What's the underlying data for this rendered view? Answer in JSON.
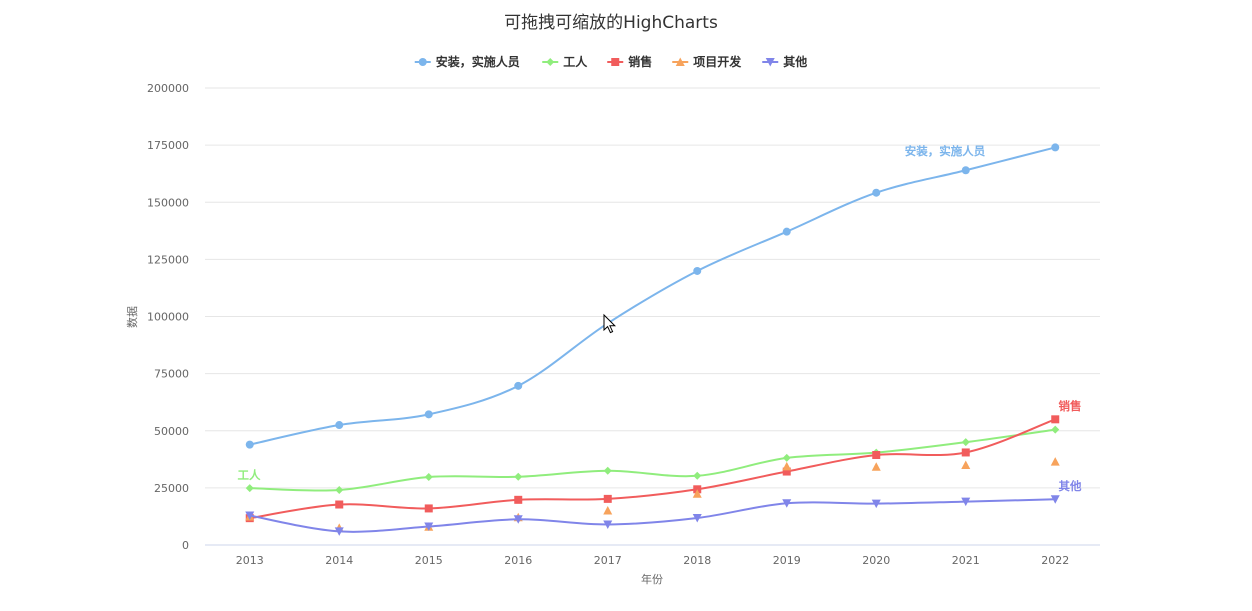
{
  "chart_data": {
    "type": "line",
    "title": "可拖拽可缩放的HighCharts",
    "xlabel": "年份",
    "ylabel": "数据",
    "categories": [
      "2013",
      "2014",
      "2015",
      "2016",
      "2017",
      "2018",
      "2019",
      "2020",
      "2021",
      "2022"
    ],
    "ylim": [
      0,
      200000
    ],
    "yticks": [
      0,
      25000,
      50000,
      75000,
      100000,
      125000,
      150000,
      175000,
      200000
    ],
    "grid": true,
    "legend_position": "top-center",
    "series": [
      {
        "name": "安装，实施人员",
        "color": "#7cb5ec",
        "marker": "circle",
        "values": [
          43934,
          52503,
          57177,
          69658,
          97031,
          119931,
          137133,
          154175,
          164000,
          174000
        ],
        "end_label": "安装，实施人员"
      },
      {
        "name": "工人",
        "color": "#90ed7d",
        "marker": "diamond",
        "values": [
          24916,
          24064,
          29742,
          29851,
          32490,
          30282,
          38121,
          40434,
          45000,
          50500
        ],
        "end_label": "工人"
      },
      {
        "name": "销售",
        "color": "#f15c5c",
        "marker": "square",
        "values": [
          11744,
          17722,
          16005,
          19771,
          20185,
          24377,
          32147,
          39387,
          40500,
          55000
        ],
        "end_label": "销售"
      },
      {
        "name": "项目开发",
        "color": "#f7a35c",
        "marker": "triangle",
        "values": null,
        "point_values": [
          12500,
          7500,
          7988,
          12169,
          15112,
          22452,
          34400,
          34227,
          35000,
          36500
        ]
      },
      {
        "name": "其他",
        "color": "#8085e9",
        "marker": "triangle-down",
        "values": [
          12908,
          5948,
          8105,
          11248,
          8989,
          11816,
          18274,
          18111,
          19000,
          20000
        ],
        "end_label": "其他"
      }
    ]
  }
}
